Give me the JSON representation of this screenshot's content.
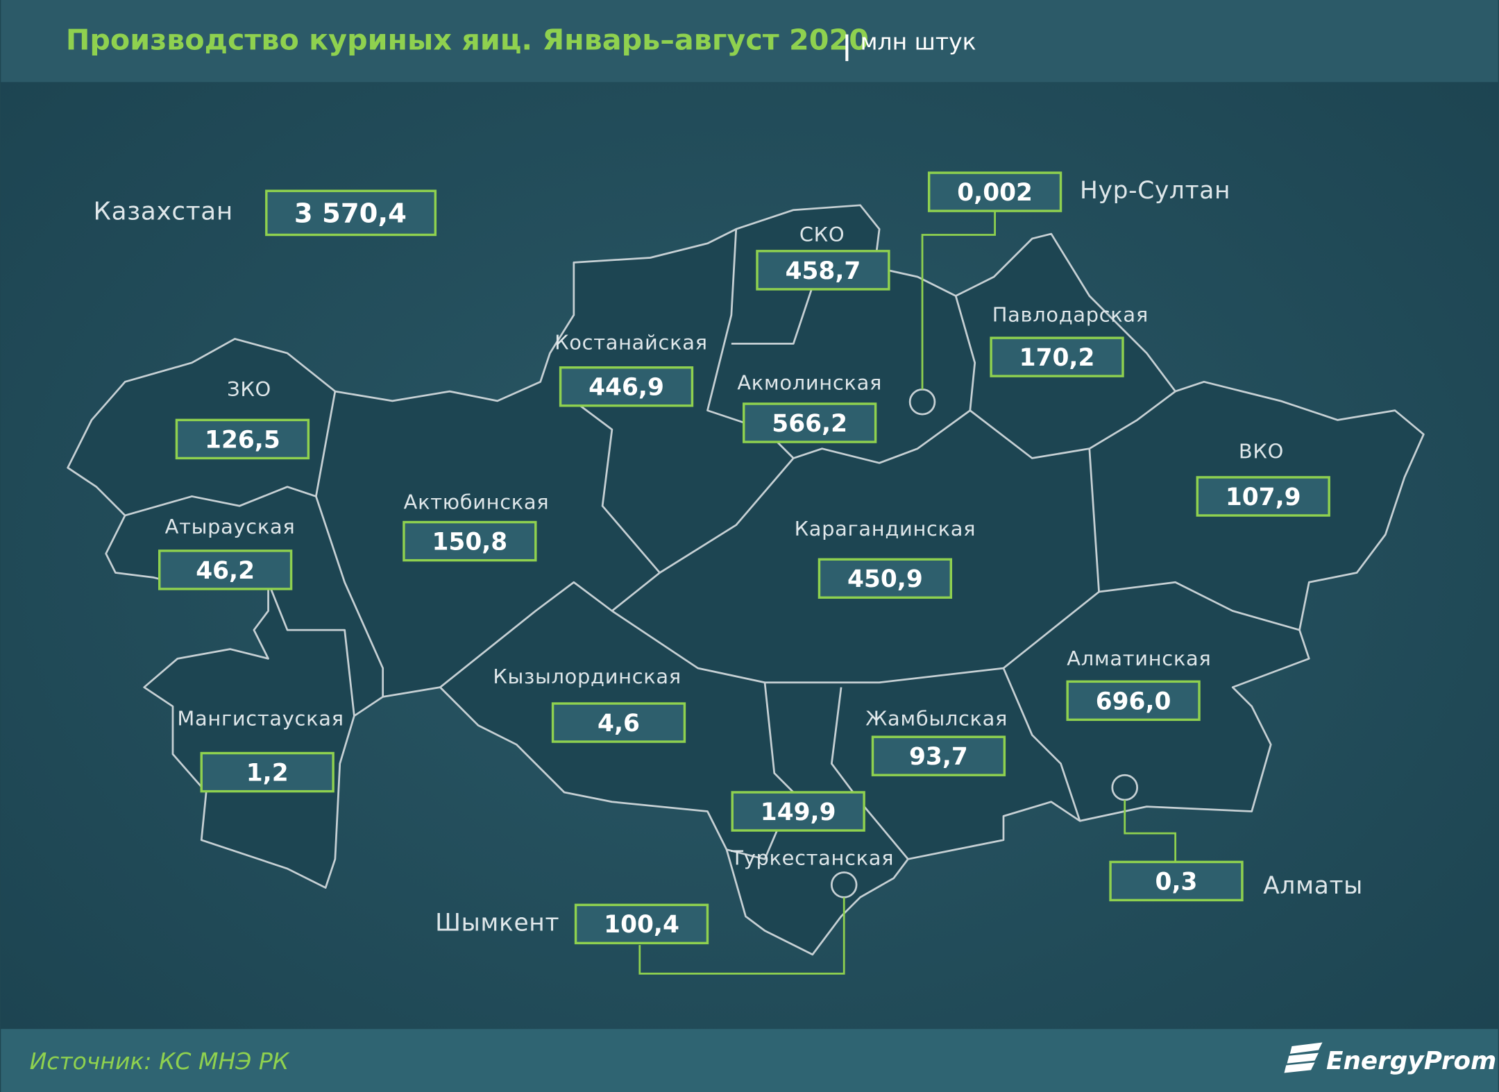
{
  "header": {
    "title": "Производство куриных яиц. Январь–август 2020",
    "unit": "млн штук"
  },
  "total": {
    "label": "Казахстан",
    "value": "3 570,4"
  },
  "regions": [
    {
      "name": "Нур-Султан",
      "value": "0,002"
    },
    {
      "name": "СКО",
      "value": "458,7"
    },
    {
      "name": "Павлодарская",
      "value": "170,2"
    },
    {
      "name": "Костанайская",
      "value": "446,9"
    },
    {
      "name": "Акмолинская",
      "value": "566,2"
    },
    {
      "name": "ЗКО",
      "value": "126,5"
    },
    {
      "name": "ВКО",
      "value": "107,9"
    },
    {
      "name": "Актюбинская",
      "value": "150,8"
    },
    {
      "name": "Атырауская",
      "value": "46,2"
    },
    {
      "name": "Карагандинская",
      "value": "450,9"
    },
    {
      "name": "Алматинская",
      "value": "696,0"
    },
    {
      "name": "Кызылординская",
      "value": "4,6"
    },
    {
      "name": "Жамбылская",
      "value": "93,7"
    },
    {
      "name": "Мангистауская",
      "value": "1,2"
    },
    {
      "name": "Туркестанская",
      "value": "149,9"
    },
    {
      "name": "Шымкент",
      "value": "100,4"
    },
    {
      "name": "Алматы",
      "value": "0,3"
    }
  ],
  "footer": {
    "source": "Источник: КС МНЭ РК",
    "logo": "EnergyProm"
  }
}
